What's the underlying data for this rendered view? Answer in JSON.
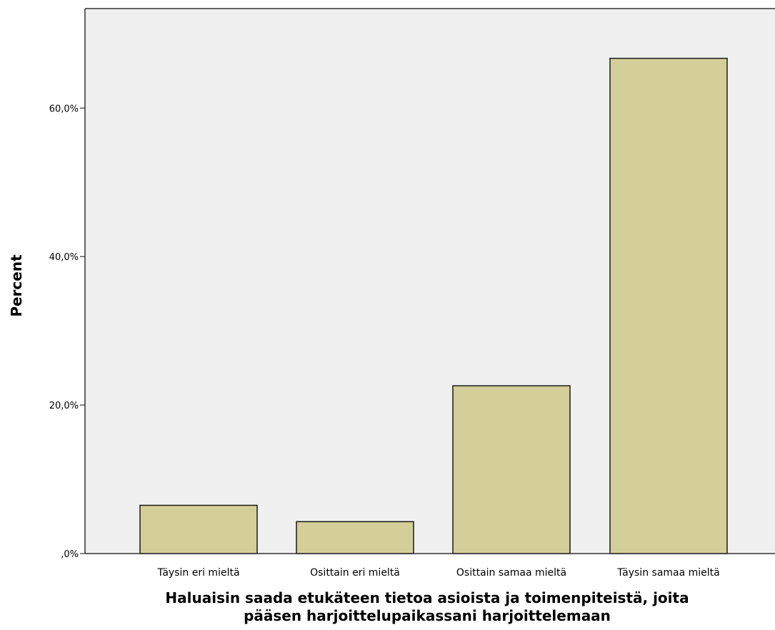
{
  "chart_data": {
    "type": "bar",
    "categories": [
      "Täysin eri mieltä",
      "Osittain eri mieltä",
      "Osittain samaa mieltä",
      "Täysin samaa mieltä"
    ],
    "values": [
      6.5,
      4.3,
      22.6,
      66.7
    ],
    "xlabel_lines": [
      "Haluaisin saada etukäteen tietoa asioista ja toimenpiteistä, joita",
      "pääsen harjoittelupaikassani harjoittelemaan"
    ],
    "ylabel": "Percent",
    "ylim": [
      0,
      73.4
    ],
    "yticks": [
      0,
      20,
      40,
      60
    ],
    "ytick_labels": [
      ",0%",
      "20,0%",
      "40,0%",
      "60,0%"
    ],
    "grid": false,
    "colors": {
      "bar_fill": "#d4cf98",
      "bar_stroke": "#1a1a1a",
      "plot_background": "#f0f0f0",
      "axis": "#333333"
    }
  }
}
